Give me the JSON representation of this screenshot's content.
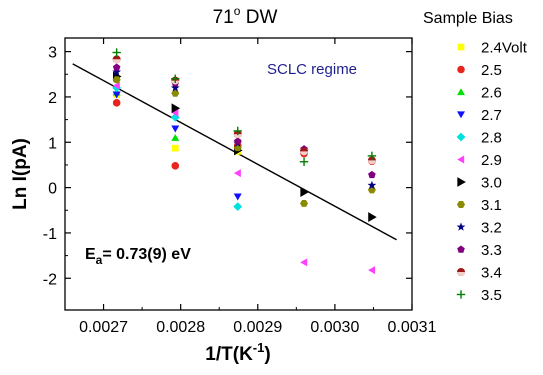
{
  "chart_data": {
    "type": "scatter",
    "title": "71",
    "title_sup": "o",
    "title_suffix": " DW",
    "xlabel": "1/T(K",
    "xlabel_sup": "-1",
    "xlabel_suffix": ")",
    "ylabel": "Ln I(pA)",
    "xlim": [
      0.00265,
      0.0031
    ],
    "ylim": [
      -2.7,
      3.3
    ],
    "x_ticks": [
      "0.0027",
      "0.0028",
      "0.0029",
      "0.0030",
      "0.0031"
    ],
    "y_ticks": [
      "-2",
      "-1",
      "0",
      "1",
      "2",
      "3"
    ],
    "x_tick_values": [
      0.0027,
      0.0028,
      0.0029,
      0.003,
      0.0031
    ],
    "y_tick_values": [
      -2,
      -1,
      0,
      1,
      2,
      3
    ],
    "annotation": "SCLC regime",
    "formula": {
      "main": "E",
      "sub": "a",
      "rest": "= 0.73(9) eV"
    },
    "legend_title": "Sample Bias",
    "legend_placement": "right",
    "fit_line": {
      "x": [
        0.00266,
        0.00308
      ],
      "y": [
        2.73,
        -1.15
      ]
    },
    "series": [
      {
        "name": "2.4Volt",
        "color": "#ffff00",
        "marker": "square",
        "x": [
          0.002717,
          0.002793,
          0.002874
        ],
        "y": [
          2.05,
          0.87,
          0.8
        ]
      },
      {
        "name": "2.5",
        "color": "#e8241c",
        "marker": "circle",
        "x": [
          0.002717,
          0.002793,
          0.002874,
          0.00296,
          0.003048
        ],
        "y": [
          1.87,
          0.48,
          0.93,
          0.75,
          0.58
        ]
      },
      {
        "name": "2.6",
        "color": "#00e000",
        "marker": "triangle-up",
        "x": [
          0.002717,
          0.002793,
          0.002874
        ],
        "y": [
          2.1,
          1.1,
          1.2
        ]
      },
      {
        "name": "2.7",
        "color": "#1010ff",
        "marker": "triangle-down",
        "x": [
          0.002717,
          0.002793,
          0.002874
        ],
        "y": [
          2.05,
          1.3,
          -0.2
        ]
      },
      {
        "name": "2.8",
        "color": "#00e0e0",
        "marker": "diamond",
        "x": [
          0.002717,
          0.002793,
          0.002874
        ],
        "y": [
          2.2,
          1.55,
          -0.42
        ]
      },
      {
        "name": "2.9",
        "color": "#ff40ff",
        "marker": "triangle-left",
        "x": [
          0.002717,
          0.002793,
          0.002874,
          0.00296,
          0.003048
        ],
        "y": [
          2.25,
          1.65,
          0.32,
          -1.65,
          -1.82
        ]
      },
      {
        "name": "3.0",
        "color": "#000000",
        "marker": "triangle-right",
        "x": [
          0.002717,
          0.002793,
          0.002874,
          0.00296,
          0.003048
        ],
        "y": [
          2.45,
          1.75,
          0.82,
          -0.1,
          -0.65
        ]
      },
      {
        "name": "3.1",
        "color": "#8b8b00",
        "marker": "hexagon",
        "x": [
          0.002717,
          0.002793,
          0.002874,
          0.00296,
          0.003048
        ],
        "y": [
          2.38,
          2.08,
          0.88,
          -0.35,
          -0.05
        ]
      },
      {
        "name": "3.2",
        "color": "#000080",
        "marker": "star",
        "x": [
          0.002717,
          0.002793,
          0.002874,
          0.00296,
          0.003048
        ],
        "y": [
          2.55,
          2.2,
          0.98,
          0.8,
          0.05
        ]
      },
      {
        "name": "3.3",
        "color": "#800080",
        "marker": "pentagon",
        "x": [
          0.002717,
          0.002793,
          0.002874,
          0.00296,
          0.003048
        ],
        "y": [
          2.65,
          2.3,
          1.02,
          0.85,
          0.28
        ]
      },
      {
        "name": "3.4",
        "color": "#a01818",
        "marker": "circle-half",
        "x": [
          0.002717,
          0.002793,
          0.002874,
          0.00296,
          0.003048
        ],
        "y": [
          2.83,
          2.36,
          1.18,
          0.8,
          0.6
        ]
      },
      {
        "name": "3.5",
        "color": "#008000",
        "marker": "plus",
        "x": [
          0.002717,
          0.002793,
          0.002874,
          0.00296,
          0.003048
        ],
        "y": [
          2.98,
          2.4,
          1.25,
          0.57,
          0.7
        ]
      }
    ]
  }
}
